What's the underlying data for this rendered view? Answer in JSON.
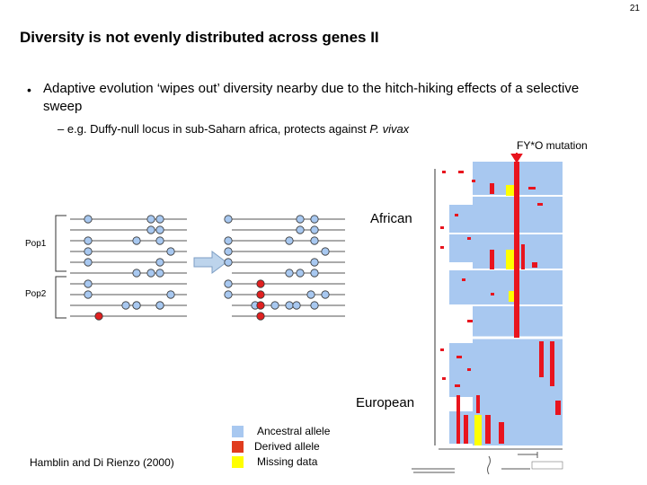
{
  "slide_number": "21",
  "title": "Diversity is not evenly distributed across genes II",
  "bullet": {
    "mark": "•",
    "text": "Adaptive evolution ‘wipes out’ diversity nearby due to the hitch-hiking effects of a selective sweep"
  },
  "sub_bullet": {
    "text_before": "– e.g. Duffy-null locus in sub-Saharn africa, protects against ",
    "italic": "P. vivax"
  },
  "labels": {
    "fy": "FY*O mutation",
    "african": "African",
    "european": "European",
    "pop1": "Pop1",
    "pop2": "Pop2"
  },
  "citation": "Hamblin and Di Rienzo (2000)",
  "legend": [
    {
      "label": "Ancestral allele",
      "color": "#a8c8f0"
    },
    {
      "label": "Derived allele",
      "color": "#e03c1e"
    },
    {
      "label": "Missing data",
      "color": "#ffff00"
    }
  ],
  "colors": {
    "ancestral_circle": "#a8c8f0",
    "derived_circle": "#e02020",
    "heatmap_bg": "#a8c8f0",
    "heatmap_red": "#e8141e",
    "heatmap_yellow": "#ffff00",
    "arrow": "#bdd4ec"
  }
}
